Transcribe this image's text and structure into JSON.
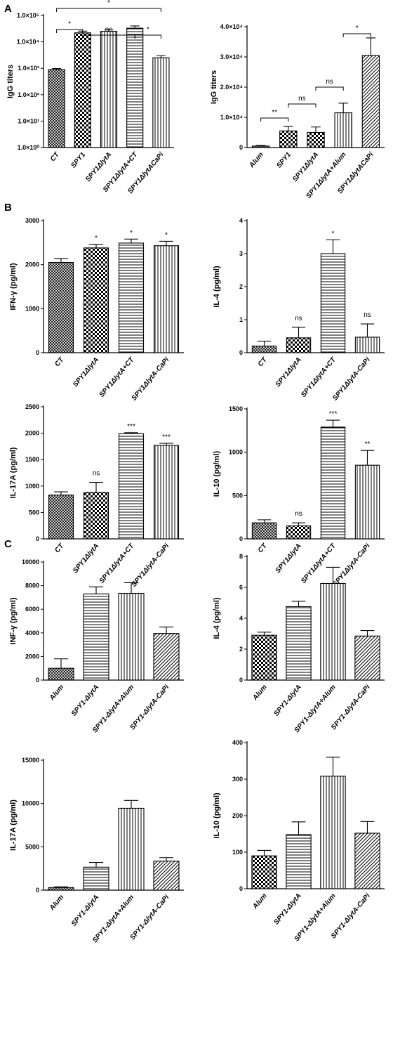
{
  "panels": [
    "A",
    "B",
    "C"
  ],
  "colors": {
    "ink": "#000000",
    "background": "#ffffff"
  },
  "chart_data": [
    {
      "type": "bar",
      "panel": "A",
      "ylabel": "IgG  titers",
      "yscale": "log",
      "ylim": [
        1,
        100000
      ],
      "yticks": [
        {
          "v": 1,
          "label": "1.0×10⁰"
        },
        {
          "v": 10,
          "label": "1.0×10¹"
        },
        {
          "v": 100,
          "label": "1.0×10²"
        },
        {
          "v": 1000,
          "label": "1.0×10³"
        },
        {
          "v": 10000,
          "label": "1.0×10⁴"
        },
        {
          "v": 100000,
          "label": "1.0×10⁵"
        }
      ],
      "categories": [
        "CT",
        "SPY1",
        "SPY1ΔlytA",
        "SPY1ΔlytA+CT",
        "SPY1ΔlytACaPi"
      ],
      "values": [
        900,
        22000,
        25000,
        33000,
        2500
      ],
      "errors": [
        80,
        3500,
        3500,
        7000,
        500
      ],
      "patterns": [
        "crosshatch",
        "checker",
        "vlines",
        "hlines",
        "vlines"
      ],
      "annotations": [],
      "brackets": [
        {
          "from": 0,
          "to": 4,
          "label": "*",
          "level": 3
        },
        {
          "from": 0,
          "to": 1,
          "label": "*",
          "level": 2
        },
        {
          "from": 1,
          "to": 3,
          "label": "ns",
          "level": 1
        },
        {
          "from": 3,
          "to": 4,
          "label": "*",
          "level": 1
        }
      ]
    },
    {
      "type": "bar",
      "panel": "",
      "ylabel": "IgG  titers",
      "ylim": [
        0,
        40000
      ],
      "yticks": [
        {
          "v": 0,
          "label": "0"
        },
        {
          "v": 10000,
          "label": "1.0×10⁴"
        },
        {
          "v": 20000,
          "label": "2.0×10⁴"
        },
        {
          "v": 30000,
          "label": "3.0×10⁴"
        },
        {
          "v": 40000,
          "label": "4.0×10⁴"
        }
      ],
      "categories": [
        "Alum",
        "SPY1",
        "SPY1ΔlytA",
        "SPY1ΔlytA+Alum",
        "SPY1ΔlytACaPi"
      ],
      "values": [
        500,
        5500,
        5000,
        11500,
        30500
      ],
      "errors": [
        200,
        1500,
        1800,
        3200,
        5800
      ],
      "patterns": [
        "crosshatch",
        "checker",
        "checker",
        "vlines",
        "diag"
      ],
      "annotations": [],
      "brackets": [
        {
          "from": 0,
          "to": 1,
          "label": "**",
          "level": 1
        },
        {
          "from": 1,
          "to": 2,
          "label": "ns",
          "level": 2
        },
        {
          "from": 2,
          "to": 3,
          "label": "ns",
          "level": 3
        },
        {
          "from": 3,
          "to": 4,
          "label": "*",
          "level": 4
        }
      ]
    },
    {
      "type": "bar",
      "panel": "B",
      "ylabel": "IFN-γ  (pg/ml)",
      "ylim": [
        0,
        3000
      ],
      "yticks": [
        {
          "v": 0,
          "label": "0"
        },
        {
          "v": 1000,
          "label": "1000"
        },
        {
          "v": 2000,
          "label": "2000"
        },
        {
          "v": 3000,
          "label": "3000"
        }
      ],
      "categories": [
        "CT",
        "SPY1ΔlytA",
        "SPY1ΔlytA+CT",
        "SPY1ΔlytA-CaPi"
      ],
      "values": [
        2050,
        2380,
        2490,
        2430
      ],
      "errors": [
        90,
        80,
        90,
        100
      ],
      "patterns": [
        "crosshatch",
        "checker",
        "hlines",
        "vlines"
      ],
      "annotations": [
        "",
        "*",
        "*",
        "*"
      ],
      "brackets": []
    },
    {
      "type": "bar",
      "panel": "",
      "ylabel": "IL-4 (pg/ml)",
      "ylim": [
        0,
        4
      ],
      "yticks": [
        {
          "v": 0,
          "label": "0"
        },
        {
          "v": 1,
          "label": "1"
        },
        {
          "v": 2,
          "label": "2"
        },
        {
          "v": 3,
          "label": "3"
        },
        {
          "v": 4,
          "label": "4"
        }
      ],
      "categories": [
        "CT",
        "SPY1ΔlytA",
        "SPY1ΔlytA+CT",
        "SPY1ΔlytA-CaPi"
      ],
      "values": [
        0.2,
        0.45,
        3.0,
        0.47
      ],
      "errors": [
        0.15,
        0.32,
        0.42,
        0.4
      ],
      "patterns": [
        "crosshatch",
        "checker",
        "hlines",
        "vlines"
      ],
      "annotations": [
        "",
        "ns",
        "*",
        "ns"
      ],
      "brackets": []
    },
    {
      "type": "bar",
      "panel": "",
      "ylabel": "IL-17A (pg/ml)",
      "ylim": [
        0,
        2500
      ],
      "yticks": [
        {
          "v": 0,
          "label": "0"
        },
        {
          "v": 500,
          "label": "500"
        },
        {
          "v": 1000,
          "label": "1000"
        },
        {
          "v": 1500,
          "label": "1500"
        },
        {
          "v": 2000,
          "label": "2000"
        },
        {
          "v": 2500,
          "label": "2500"
        }
      ],
      "categories": [
        "CT",
        "SPY1ΔlytA",
        "SPY1ΔlytA+CT",
        "SPY1ΔlytA-CaPi"
      ],
      "values": [
        830,
        880,
        1990,
        1770
      ],
      "errors": [
        60,
        190,
        20,
        40
      ],
      "patterns": [
        "crosshatch",
        "checker",
        "hlines",
        "vlines"
      ],
      "annotations": [
        "",
        "ns",
        "***",
        "***"
      ],
      "brackets": []
    },
    {
      "type": "bar",
      "panel": "",
      "ylabel": "IL-10 (pg/ml)",
      "ylim": [
        0,
        1500
      ],
      "yticks": [
        {
          "v": 0,
          "label": "0"
        },
        {
          "v": 500,
          "label": "500"
        },
        {
          "v": 1000,
          "label": "1000"
        },
        {
          "v": 1500,
          "label": "1500"
        }
      ],
      "categories": [
        "CT",
        "SPY1ΔlytA",
        "SPY1ΔlytA+CT",
        "SPY1ΔlytA-CaPi"
      ],
      "values": [
        185,
        150,
        1290,
        850
      ],
      "errors": [
        35,
        35,
        80,
        170
      ],
      "patterns": [
        "crosshatch",
        "checker",
        "hlines",
        "vlines"
      ],
      "annotations": [
        "",
        "ns",
        "***",
        "**"
      ],
      "brackets": []
    },
    {
      "type": "bar",
      "panel": "C",
      "ylabel": "INF-γ  (pg/ml)",
      "ylim": [
        0,
        10000
      ],
      "yticks": [
        {
          "v": 0,
          "label": "0"
        },
        {
          "v": 2000,
          "label": "2000"
        },
        {
          "v": 4000,
          "label": "4000"
        },
        {
          "v": 6000,
          "label": "6000"
        },
        {
          "v": 8000,
          "label": "8000"
        },
        {
          "v": 10000,
          "label": "10000"
        }
      ],
      "categories": [
        "Alum",
        "SPY1-ΔlytA",
        "SPY1-ΔlytA+Alum",
        "SPY1-ΔlytA-CaPi"
      ],
      "values": [
        1000,
        7300,
        7350,
        3950
      ],
      "errors": [
        800,
        600,
        900,
        550
      ],
      "patterns": [
        "crosshatch",
        "hlines",
        "vlines",
        "diag"
      ],
      "annotations": [],
      "brackets": []
    },
    {
      "type": "bar",
      "panel": "",
      "ylabel": "IL-4 (pg/ml)",
      "ylim": [
        0,
        8
      ],
      "yticks": [
        {
          "v": 0,
          "label": "0"
        },
        {
          "v": 2,
          "label": "2"
        },
        {
          "v": 4,
          "label": "4"
        },
        {
          "v": 6,
          "label": "6"
        },
        {
          "v": 8,
          "label": "8"
        }
      ],
      "categories": [
        "Alum",
        "SPY1-ΔlytA",
        "SPY1-ΔlytA+Alum",
        "SPY1-ΔlytA-CaPi"
      ],
      "values": [
        2.9,
        4.75,
        6.25,
        2.85
      ],
      "errors": [
        0.2,
        0.35,
        1.05,
        0.35
      ],
      "patterns": [
        "checker",
        "hlines",
        "vlines",
        "diag"
      ],
      "annotations": [],
      "brackets": []
    },
    {
      "type": "bar",
      "panel": "",
      "ylabel": "IL-17A (pg/ml)",
      "ylim": [
        0,
        15000
      ],
      "yticks": [
        {
          "v": 0,
          "label": "0"
        },
        {
          "v": 5000,
          "label": "5000"
        },
        {
          "v": 10000,
          "label": "10000"
        },
        {
          "v": 15000,
          "label": "15000"
        }
      ],
      "categories": [
        "Alum",
        "SPY1-ΔlytA",
        "SPY1-ΔlytA+Alum",
        "SPY1-ΔlytA-CaPi"
      ],
      "values": [
        300,
        2650,
        9450,
        3350
      ],
      "errors": [
        80,
        550,
        900,
        400
      ],
      "patterns": [
        "crosshatch",
        "hlines",
        "vlines",
        "diag"
      ],
      "annotations": [],
      "brackets": []
    },
    {
      "type": "bar",
      "panel": "",
      "ylabel": "IL-10 (pg/ml)",
      "ylim": [
        0,
        400
      ],
      "yticks": [
        {
          "v": 0,
          "label": "0"
        },
        {
          "v": 100,
          "label": "100"
        },
        {
          "v": 200,
          "label": "200"
        },
        {
          "v": 300,
          "label": "300"
        },
        {
          "v": 400,
          "label": "400"
        }
      ],
      "categories": [
        "Alum",
        "SPY1-ΔlytA",
        "SPY1-ΔlytA+Alum",
        "SPY1-ΔlytA-CaPi"
      ],
      "values": [
        90,
        148,
        308,
        152
      ],
      "errors": [
        15,
        35,
        52,
        32
      ],
      "patterns": [
        "checker",
        "hlines",
        "vlines",
        "diag"
      ],
      "annotations": [],
      "brackets": []
    }
  ]
}
